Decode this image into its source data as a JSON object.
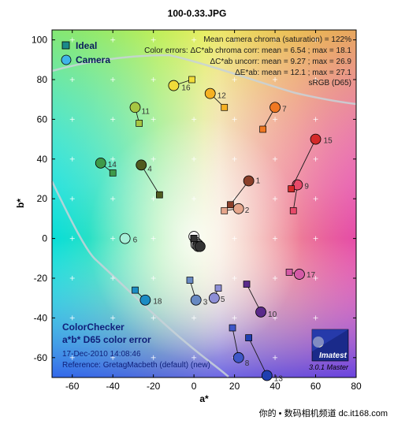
{
  "file_title": "100-0.33.JPG",
  "footer": "你的 • 数码相机频道  dc.it168.com",
  "legend": [
    {
      "label": "Ideal",
      "marker": "square",
      "color": "#1b8a8a"
    },
    {
      "label": "Camera",
      "marker": "circle",
      "color": "#3fb5e8"
    }
  ],
  "info_lines": [
    "Mean camera chroma (saturation) = 122%",
    "Color errors:  ΔC*ab chroma corr:  mean = 6.54 ;  max = 18.1",
    "ΔC*ab uncorr:  mean = 9.27 ;  max = 26.9",
    "ΔE*ab:  mean = 12.1 ;  max = 27.1",
    "sRGB (D65)"
  ],
  "caption": {
    "title1": "ColorChecker",
    "title2": "a*b* D65 color error",
    "date": "17-Dec-2010 14:08:46",
    "reference": "Reference: GretagMacbeth (default) (new)"
  },
  "brand": {
    "name": "Imatest",
    "version": "3.0.1  Master"
  },
  "chart_data": {
    "type": "scatter",
    "title": "100-0.33.JPG",
    "xlabel": "a*",
    "ylabel": "b*",
    "xlim": [
      -70,
      80
    ],
    "ylim": [
      -70,
      105
    ],
    "x_ticks": [
      -60,
      -40,
      -20,
      0,
      20,
      40,
      60,
      80
    ],
    "y_ticks": [
      -60,
      -40,
      -20,
      0,
      20,
      40,
      60,
      80,
      100
    ],
    "grid": true,
    "series": [
      {
        "name": "Ideal",
        "marker": "square"
      },
      {
        "name": "Camera",
        "marker": "circle"
      }
    ],
    "patches": [
      {
        "id": "1",
        "ideal": [
          18,
          17
        ],
        "camera": [
          27,
          29
        ],
        "color": "#8b3f2a"
      },
      {
        "id": "2",
        "ideal": [
          15,
          14
        ],
        "camera": [
          22,
          15
        ],
        "color": "#e6a68c"
      },
      {
        "id": "3",
        "ideal": [
          -2,
          -21
        ],
        "camera": [
          1,
          -31
        ],
        "color": "#6789c2"
      },
      {
        "id": "4",
        "ideal": [
          -17,
          22
        ],
        "camera": [
          -26,
          37
        ],
        "color": "#4f5a1f"
      },
      {
        "id": "5",
        "ideal": [
          12,
          -25
        ],
        "camera": [
          10,
          -30
        ],
        "color": "#8e8fd6"
      },
      {
        "id": "6",
        "ideal": [
          -34,
          0
        ],
        "camera": [
          -34,
          0
        ],
        "color": "#a6f0d8"
      },
      {
        "id": "7",
        "ideal": [
          34,
          55
        ],
        "camera": [
          40,
          66
        ],
        "color": "#f07822"
      },
      {
        "id": "8",
        "ideal": [
          19,
          -45
        ],
        "camera": [
          22,
          -60
        ],
        "color": "#3f57c8"
      },
      {
        "id": "9",
        "ideal": [
          49,
          14
        ],
        "camera": [
          51,
          27
        ],
        "color": "#e84a6a"
      },
      {
        "id": "10",
        "ideal": [
          26,
          -23
        ],
        "camera": [
          33,
          -37
        ],
        "color": "#5a2a8a"
      },
      {
        "id": "11",
        "ideal": [
          -27,
          58
        ],
        "camera": [
          -29,
          66
        ],
        "color": "#a6c642"
      },
      {
        "id": "12",
        "ideal": [
          15,
          66
        ],
        "camera": [
          8,
          73
        ],
        "color": "#f5b123"
      },
      {
        "id": "13",
        "ideal": [
          27,
          -50
        ],
        "camera": [
          36,
          -69
        ],
        "color": "#1f3fb0"
      },
      {
        "id": "14",
        "ideal": [
          -40,
          33
        ],
        "camera": [
          -46,
          38
        ],
        "color": "#3e9a4a"
      },
      {
        "id": "15",
        "ideal": [
          48,
          25
        ],
        "camera": [
          60,
          50
        ],
        "color": "#d42a2a"
      },
      {
        "id": "16",
        "ideal": [
          -1,
          80
        ],
        "camera": [
          -10,
          77
        ],
        "color": "#f0dc3a"
      },
      {
        "id": "17",
        "ideal": [
          47,
          -17
        ],
        "camera": [
          52,
          -18
        ],
        "color": "#d45aa6"
      },
      {
        "id": "18",
        "ideal": [
          -29,
          -26
        ],
        "camera": [
          -24,
          -31
        ],
        "color": "#1c8cc4"
      },
      {
        "id": "19",
        "ideal": [
          0,
          0
        ],
        "camera": [
          0,
          1
        ],
        "color": "#fafafa"
      },
      {
        "id": "20",
        "ideal": [
          0,
          0
        ],
        "camera": [
          1,
          -2
        ],
        "color": "#c8c8c8"
      },
      {
        "id": "21",
        "ideal": [
          0,
          0
        ],
        "camera": [
          1,
          -3
        ],
        "color": "#a0a0a0"
      },
      {
        "id": "22",
        "ideal": [
          0,
          0
        ],
        "camera": [
          2,
          -3
        ],
        "color": "#7a7a7a"
      },
      {
        "id": "23",
        "ideal": [
          0,
          0
        ],
        "camera": [
          2,
          -4
        ],
        "color": "#555555"
      },
      {
        "id": "24",
        "ideal": [
          0,
          0
        ],
        "camera": [
          3,
          -4
        ],
        "color": "#333333"
      }
    ]
  }
}
